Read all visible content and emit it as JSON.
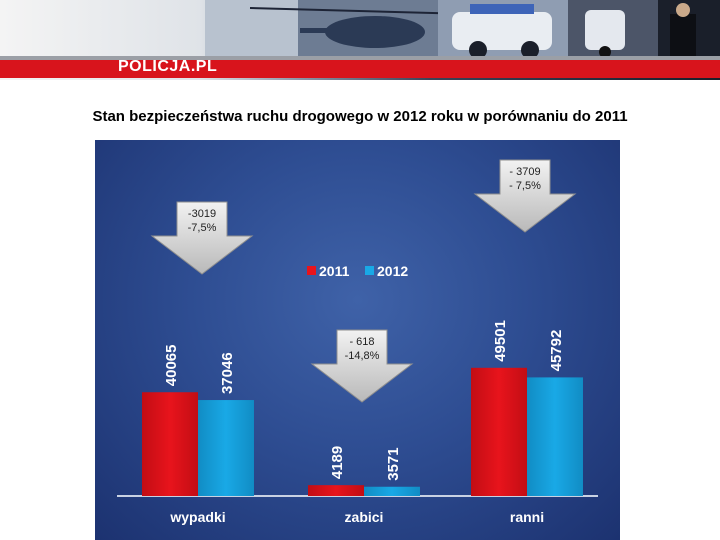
{
  "header": {
    "brand": "POLICJA.PL"
  },
  "subtitle": "Stan bezpieczeństwa ruchu drogowego w 2012 roku w porównaniu do 2011",
  "chart_data": {
    "type": "bar",
    "categories": [
      "wypadki",
      "zabici",
      "ranni"
    ],
    "series": [
      {
        "name": "2011",
        "values": [
          40065,
          4189,
          49501
        ],
        "color": "#e8141c"
      },
      {
        "name": "2012",
        "values": [
          37046,
          3571,
          45792
        ],
        "color": "#19a9e6"
      }
    ],
    "legend_position": "top-center",
    "grid": false,
    "annotations": [
      {
        "category": "wypadki",
        "line1": "-3019",
        "line2": "-7,5%"
      },
      {
        "category": "zabici",
        "line1": "- 618",
        "line2": "-14,8%"
      },
      {
        "category": "ranni",
        "line1": "- 3709",
        "line2": "- 7,5%"
      }
    ]
  },
  "colors": {
    "panel": "#2e4d92",
    "banner_stripe": "#d8141c",
    "arrow": "#d4d4d4"
  }
}
